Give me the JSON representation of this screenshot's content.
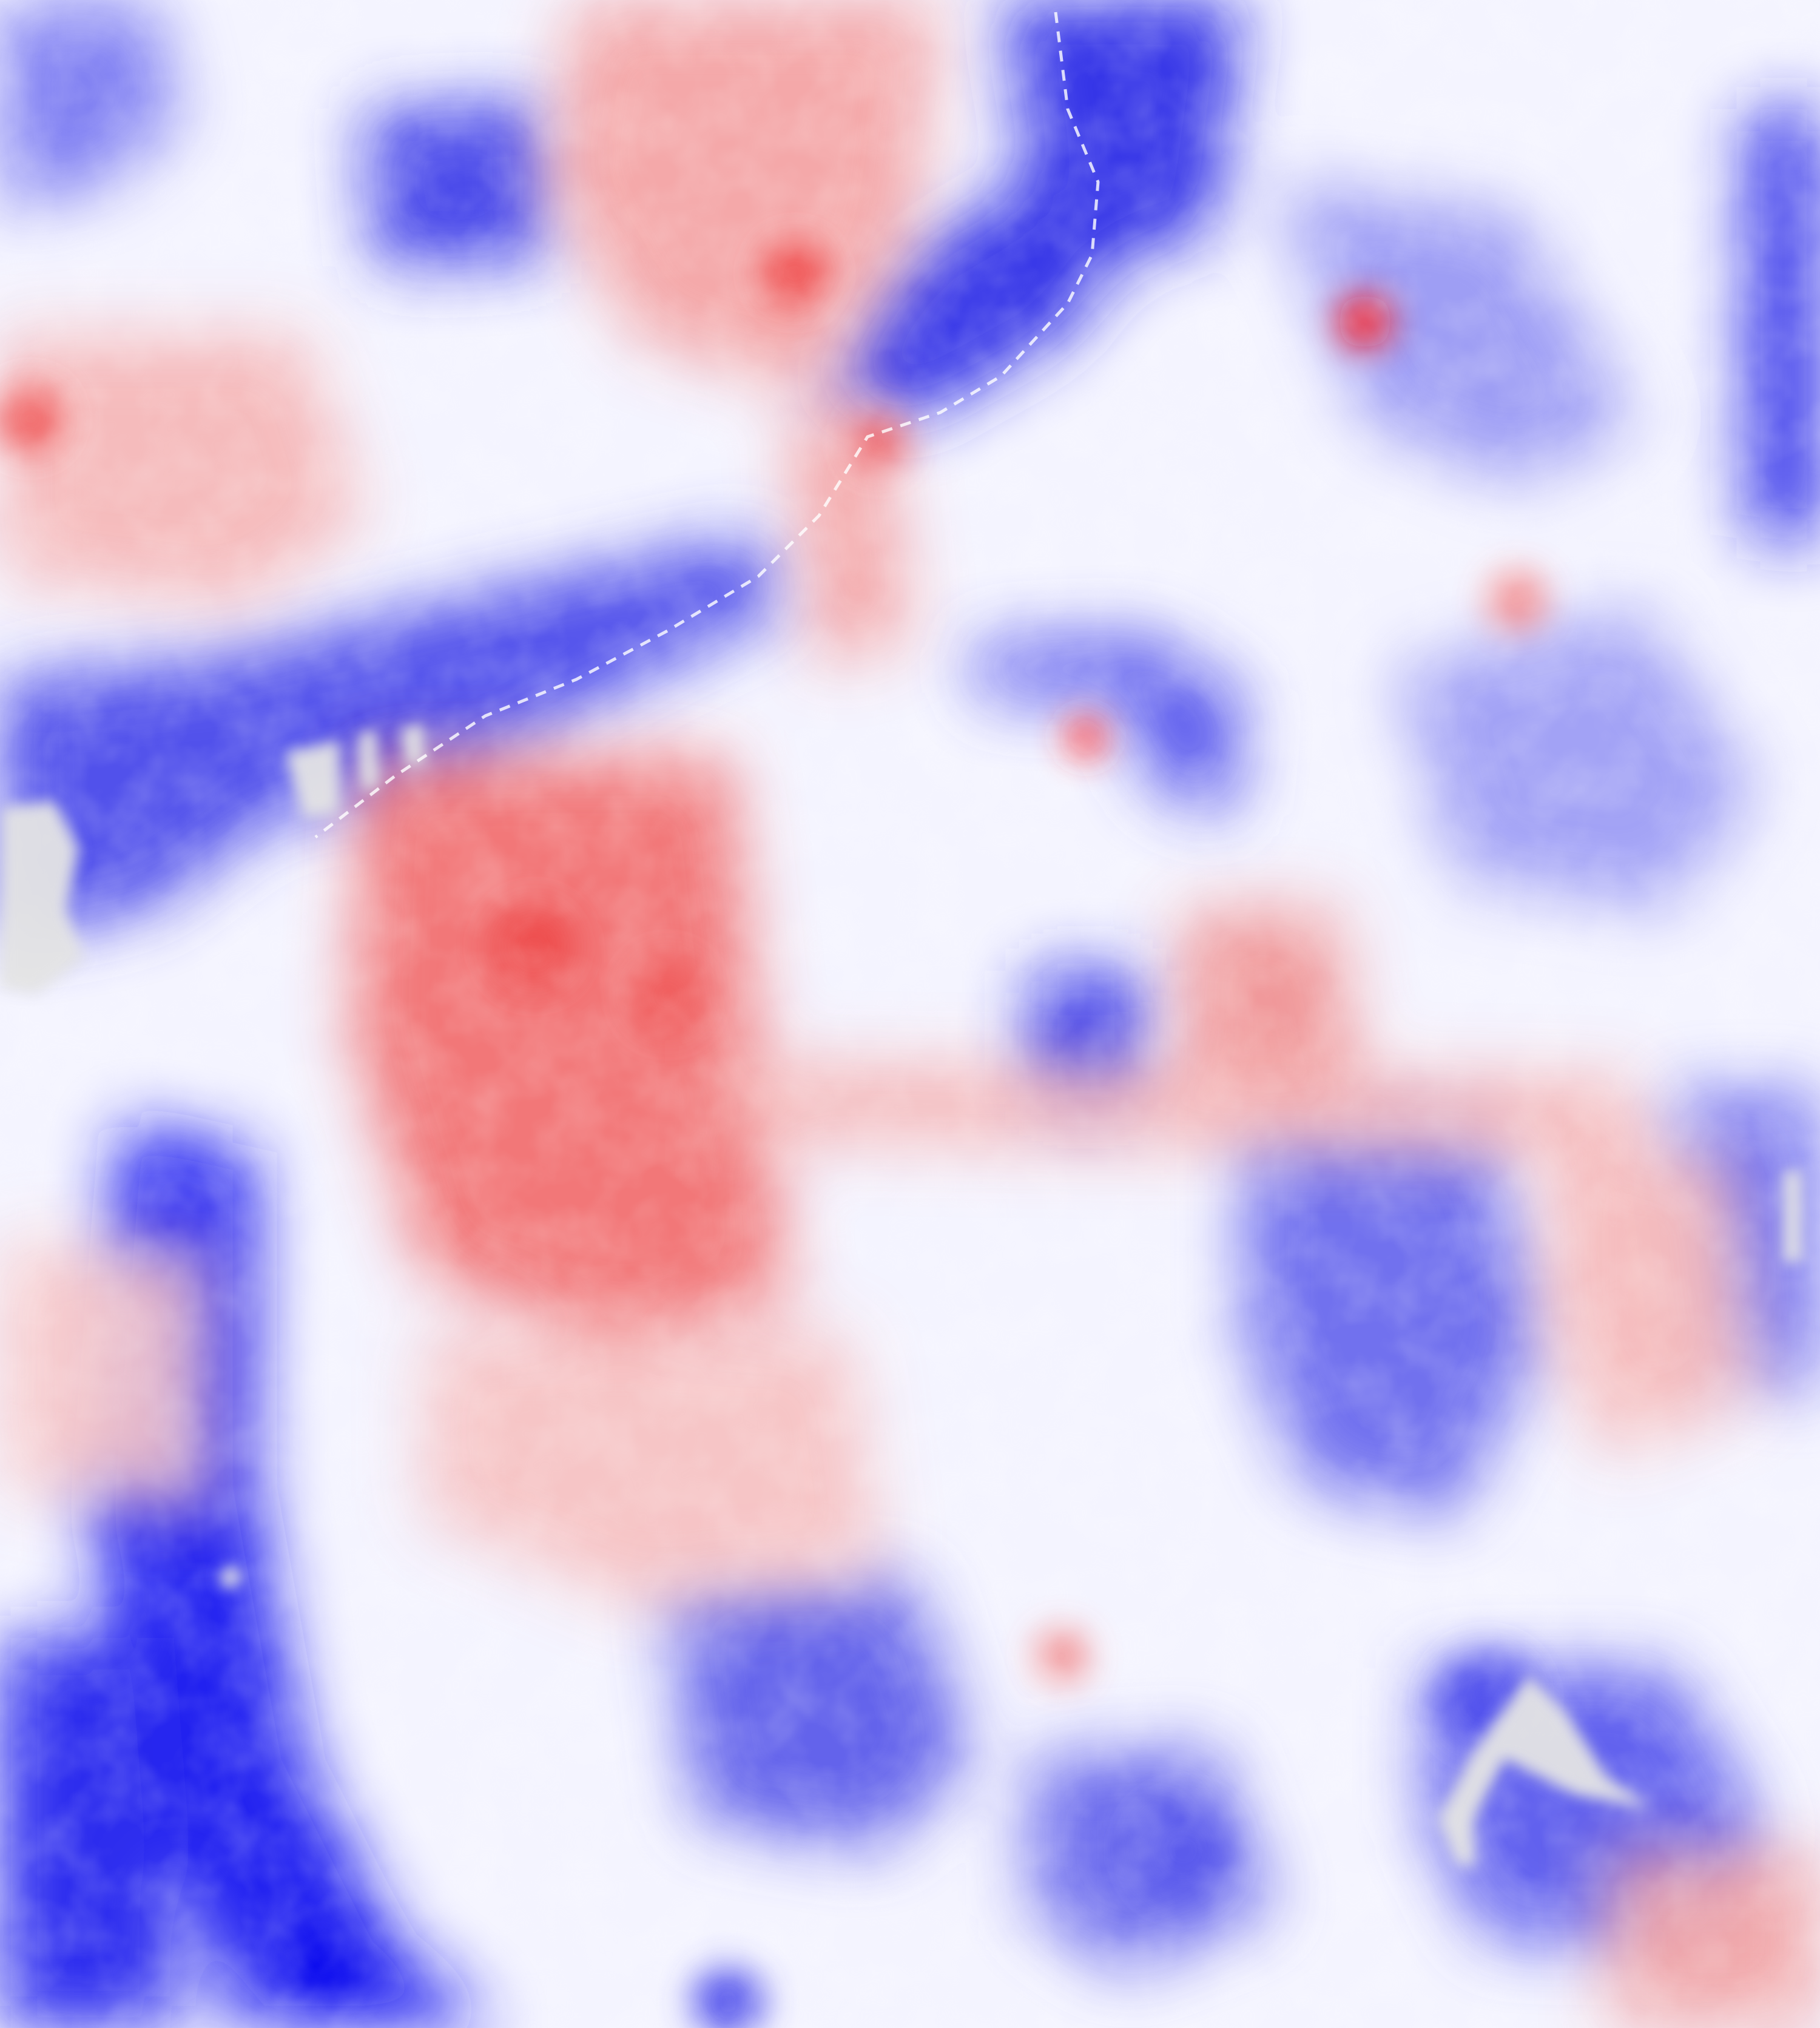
{
  "map": {
    "kind": "diverging raster field",
    "colors": {
      "negative_strong": "#0000ff",
      "negative_mid": "#6f6ff0",
      "neutral": "#ffffff",
      "positive_mid": "#f7a8a8",
      "positive_strong": "#ff0000",
      "no_data": "#e6e6e6"
    },
    "legend": null,
    "title": ""
  }
}
